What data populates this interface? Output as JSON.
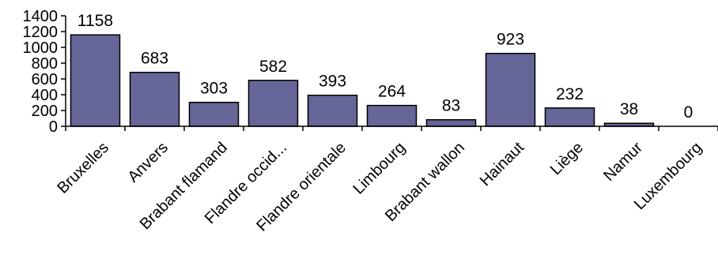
{
  "chart_data": {
    "type": "bar",
    "title": "",
    "xlabel": "",
    "ylabel": "",
    "categories": [
      "Bruxelles",
      "Anvers",
      "Brabant flamand",
      "Flandre occid...",
      "Flandre orientale",
      "Limbourg",
      "Brabant wallon",
      "Hainaut",
      "Liège",
      "Namur",
      "Luxembourg"
    ],
    "values": [
      1158,
      683,
      303,
      582,
      393,
      264,
      83,
      923,
      232,
      38,
      0
    ],
    "data_labels": [
      "1158",
      "683",
      "303",
      "582",
      "393",
      "264",
      "83",
      "923",
      "232",
      "38",
      "0"
    ],
    "ylim": [
      0,
      1400
    ],
    "yticks": [
      0,
      200,
      400,
      600,
      800,
      1000,
      1200,
      1400
    ],
    "ytick_labels": [
      "0",
      "200",
      "400",
      "600",
      "800",
      "1000",
      "1200",
      "1400"
    ],
    "grid": false,
    "legend": "none",
    "colors": {
      "bar_fill": "#666699",
      "bar_stroke": "#000000",
      "axis": "#000000",
      "text": "#000000",
      "background": "#ffffff"
    }
  }
}
